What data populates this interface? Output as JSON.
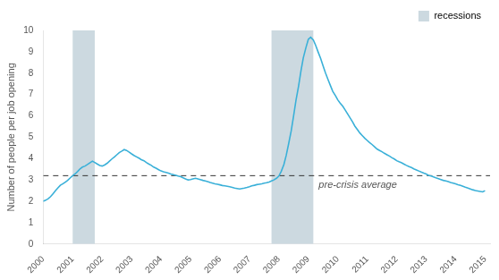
{
  "chart_data": {
    "type": "line",
    "ylabel": "Number of people per job opening",
    "xlim": [
      2000.0,
      2015.17
    ],
    "ylim": [
      0,
      10
    ],
    "xticks": [
      2000,
      2001,
      2002,
      2003,
      2004,
      2005,
      2006,
      2007,
      2008,
      2009,
      2010,
      2011,
      2012,
      2013,
      2014,
      2015
    ],
    "yticks": [
      0,
      1,
      2,
      3,
      4,
      5,
      6,
      7,
      8,
      9,
      10
    ],
    "grid": false,
    "legend": "upper right",
    "color": "#3ab0d8",
    "shaded_regions": {
      "name": "recessions",
      "color": "#ccd9e0",
      "ranges": [
        [
          2001.0,
          2001.75
        ],
        [
          2007.75,
          2009.17
        ]
      ]
    },
    "reference_line": {
      "value": 3.2,
      "label": "pre-crisis average",
      "color": "#333333",
      "line_style": "dashed"
    },
    "x": [
      2000.0,
      2000.08,
      2000.17,
      2000.25,
      2000.33,
      2000.42,
      2000.5,
      2000.58,
      2000.67,
      2000.75,
      2000.83,
      2000.92,
      2001.0,
      2001.08,
      2001.17,
      2001.25,
      2001.33,
      2001.42,
      2001.5,
      2001.58,
      2001.67,
      2001.75,
      2001.83,
      2001.92,
      2002.0,
      2002.08,
      2002.17,
      2002.25,
      2002.33,
      2002.42,
      2002.5,
      2002.58,
      2002.67,
      2002.75,
      2002.83,
      2002.92,
      2003.0,
      2003.08,
      2003.17,
      2003.25,
      2003.33,
      2003.42,
      2003.5,
      2003.58,
      2003.67,
      2003.75,
      2003.83,
      2003.92,
      2004.0,
      2004.08,
      2004.17,
      2004.25,
      2004.33,
      2004.42,
      2004.5,
      2004.58,
      2004.67,
      2004.75,
      2004.83,
      2004.92,
      2005.0,
      2005.08,
      2005.17,
      2005.25,
      2005.33,
      2005.42,
      2005.5,
      2005.58,
      2005.67,
      2005.75,
      2005.83,
      2005.92,
      2006.0,
      2006.08,
      2006.17,
      2006.25,
      2006.33,
      2006.42,
      2006.5,
      2006.58,
      2006.67,
      2006.75,
      2006.83,
      2006.92,
      2007.0,
      2007.08,
      2007.17,
      2007.25,
      2007.33,
      2007.42,
      2007.5,
      2007.58,
      2007.67,
      2007.75,
      2007.83,
      2007.92,
      2008.0,
      2008.08,
      2008.17,
      2008.25,
      2008.33,
      2008.42,
      2008.5,
      2008.58,
      2008.67,
      2008.75,
      2008.83,
      2008.92,
      2009.0,
      2009.08,
      2009.17,
      2009.25,
      2009.33,
      2009.42,
      2009.5,
      2009.58,
      2009.67,
      2009.75,
      2009.83,
      2009.92,
      2010.0,
      2010.08,
      2010.17,
      2010.25,
      2010.33,
      2010.42,
      2010.5,
      2010.58,
      2010.67,
      2010.75,
      2010.83,
      2010.92,
      2011.0,
      2011.08,
      2011.17,
      2011.25,
      2011.33,
      2011.42,
      2011.5,
      2011.58,
      2011.67,
      2011.75,
      2011.83,
      2011.92,
      2012.0,
      2012.08,
      2012.17,
      2012.25,
      2012.33,
      2012.42,
      2012.5,
      2012.58,
      2012.67,
      2012.75,
      2012.83,
      2012.92,
      2013.0,
      2013.08,
      2013.17,
      2013.25,
      2013.33,
      2013.42,
      2013.5,
      2013.58,
      2013.67,
      2013.75,
      2013.83,
      2013.92,
      2014.0,
      2014.08,
      2014.17,
      2014.25,
      2014.33,
      2014.42,
      2014.5,
      2014.58,
      2014.67,
      2014.75,
      2014.83,
      2014.92,
      2015.0
    ],
    "values": [
      2.0,
      2.05,
      2.12,
      2.22,
      2.35,
      2.5,
      2.63,
      2.75,
      2.82,
      2.9,
      2.98,
      3.1,
      3.2,
      3.28,
      3.4,
      3.52,
      3.6,
      3.65,
      3.72,
      3.8,
      3.88,
      3.82,
      3.75,
      3.68,
      3.65,
      3.7,
      3.78,
      3.88,
      3.98,
      4.08,
      4.18,
      4.28,
      4.35,
      4.42,
      4.38,
      4.3,
      4.22,
      4.15,
      4.08,
      4.02,
      3.95,
      3.9,
      3.82,
      3.75,
      3.68,
      3.6,
      3.55,
      3.48,
      3.42,
      3.38,
      3.35,
      3.32,
      3.28,
      3.25,
      3.22,
      3.18,
      3.15,
      3.1,
      3.05,
      3.0,
      3.02,
      3.05,
      3.08,
      3.05,
      3.02,
      2.98,
      2.95,
      2.92,
      2.88,
      2.85,
      2.82,
      2.8,
      2.77,
      2.74,
      2.72,
      2.7,
      2.68,
      2.65,
      2.62,
      2.6,
      2.58,
      2.6,
      2.62,
      2.65,
      2.68,
      2.72,
      2.75,
      2.78,
      2.8,
      2.82,
      2.85,
      2.87,
      2.9,
      2.95,
      3.0,
      3.08,
      3.18,
      3.4,
      3.72,
      4.15,
      4.68,
      5.3,
      6.0,
      6.72,
      7.4,
      8.1,
      8.72,
      9.2,
      9.58,
      9.68,
      9.55,
      9.3,
      9.0,
      8.68,
      8.35,
      8.02,
      7.7,
      7.42,
      7.15,
      6.95,
      6.75,
      6.6,
      6.45,
      6.28,
      6.1,
      5.9,
      5.72,
      5.52,
      5.35,
      5.2,
      5.08,
      4.95,
      4.85,
      4.75,
      4.65,
      4.55,
      4.45,
      4.38,
      4.32,
      4.25,
      4.18,
      4.12,
      4.05,
      3.98,
      3.9,
      3.85,
      3.8,
      3.74,
      3.68,
      3.62,
      3.58,
      3.52,
      3.47,
      3.42,
      3.37,
      3.32,
      3.28,
      3.22,
      3.18,
      3.14,
      3.1,
      3.06,
      3.02,
      2.98,
      2.95,
      2.92,
      2.88,
      2.85,
      2.82,
      2.78,
      2.74,
      2.7,
      2.66,
      2.62,
      2.58,
      2.54,
      2.5,
      2.48,
      2.46,
      2.44,
      2.5
    ]
  }
}
